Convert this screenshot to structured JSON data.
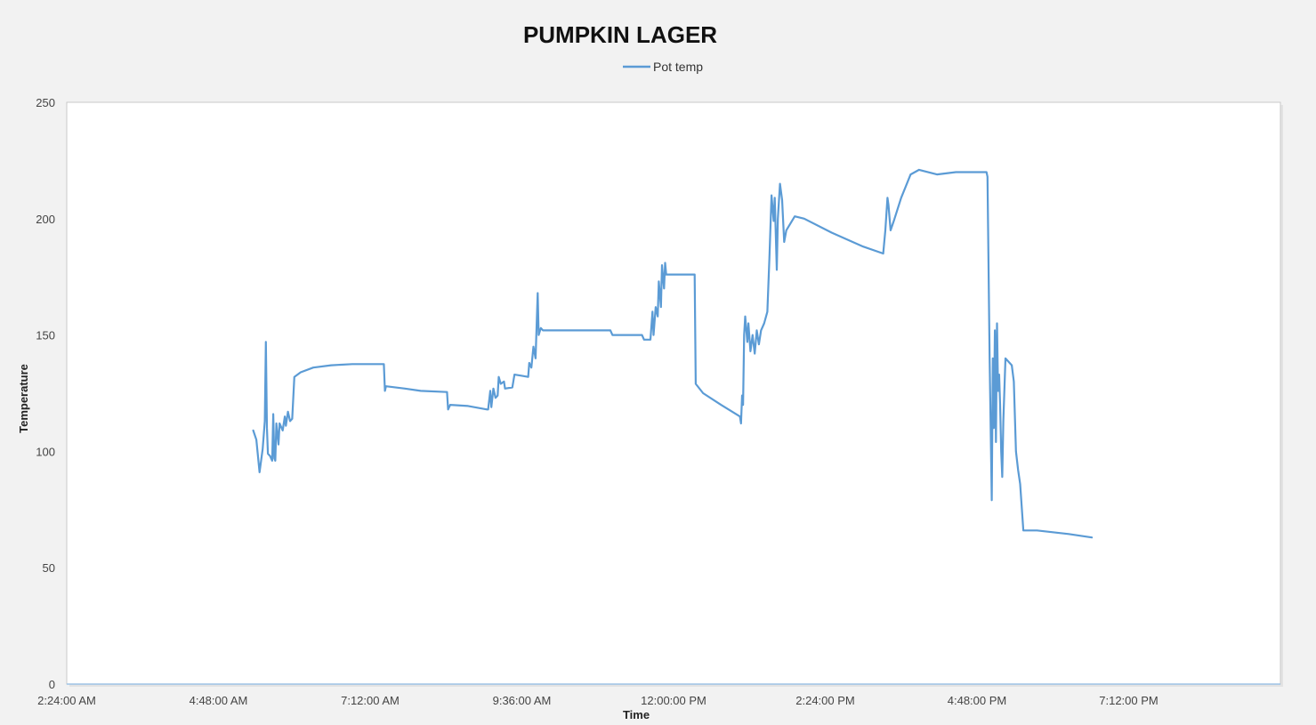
{
  "chart_data": {
    "type": "line",
    "title": "PUMPKIN LAGER",
    "xlabel": "Time",
    "ylabel": "Temperature",
    "xlim": [
      "2:24:00 AM",
      "9:36:00 PM"
    ],
    "ylim": [
      0,
      250
    ],
    "y_ticks": [
      "0",
      "50",
      "100",
      "150",
      "200",
      "250"
    ],
    "x_ticks": [
      "2:24:00 AM",
      "4:48:00 AM",
      "7:12:00 AM",
      "9:36:00 AM",
      "12:00:00 PM",
      "2:24:00 PM",
      "4:48:00 PM",
      "7:12:00 PM"
    ],
    "legend": {
      "position": "top",
      "entries": [
        "Pot temp"
      ]
    },
    "grid": false,
    "line_color": "#5b9bd5",
    "series": [
      {
        "name": "Pot temp",
        "points": [
          [
            "5:21 AM",
            109
          ],
          [
            "5:24 AM",
            105
          ],
          [
            "5:27 AM",
            91
          ],
          [
            "5:30 AM",
            101
          ],
          [
            "5:32 AM",
            113
          ],
          [
            "5:33 AM",
            147
          ],
          [
            "5:34 AM",
            110
          ],
          [
            "5:35 AM",
            99
          ],
          [
            "5:37 AM",
            98
          ],
          [
            "5:39 AM",
            96
          ],
          [
            "5:40 AM",
            116
          ],
          [
            "5:41 AM",
            97
          ],
          [
            "5:42 AM",
            96
          ],
          [
            "5:43 AM",
            112
          ],
          [
            "5:45 AM",
            103
          ],
          [
            "5:46 AM",
            112
          ],
          [
            "5:49 AM",
            109
          ],
          [
            "5:51 AM",
            115
          ],
          [
            "5:52 AM",
            111
          ],
          [
            "5:54 AM",
            117
          ],
          [
            "5:56 AM",
            113
          ],
          [
            "5:58 AM",
            114
          ],
          [
            "6:00 AM",
            132
          ],
          [
            "6:06 AM",
            134
          ],
          [
            "6:18 AM",
            136
          ],
          [
            "6:35 AM",
            137
          ],
          [
            "6:55 AM",
            137.5
          ],
          [
            "7:25 AM",
            137.5
          ],
          [
            "7:26 AM",
            126
          ],
          [
            "7:27 AM",
            128
          ],
          [
            "7:45 AM",
            127
          ],
          [
            "8:00 AM",
            126
          ],
          [
            "8:25 AM",
            125.5
          ],
          [
            "8:26 AM",
            118
          ],
          [
            "8:28 AM",
            120
          ],
          [
            "8:45 AM",
            119.5
          ],
          [
            "9:03 AM",
            118
          ],
          [
            "9:04 AM",
            118
          ],
          [
            "9:06 AM",
            126
          ],
          [
            "9:07 AM",
            119
          ],
          [
            "9:09 AM",
            127
          ],
          [
            "9:11 AM",
            123
          ],
          [
            "9:13 AM",
            124
          ],
          [
            "9:14 AM",
            132
          ],
          [
            "9:16 AM",
            129
          ],
          [
            "9:19 AM",
            130
          ],
          [
            "9:20 AM",
            127
          ],
          [
            "9:27 AM",
            127.5
          ],
          [
            "9:29 AM",
            133
          ],
          [
            "9:36 AM",
            132.5
          ],
          [
            "9:42 AM",
            132
          ],
          [
            "9:43 AM",
            138
          ],
          [
            "9:45 AM",
            136
          ],
          [
            "9:47 AM",
            145
          ],
          [
            "9:49 AM",
            140
          ],
          [
            "9:51 AM",
            168
          ],
          [
            "9:52 AM",
            150
          ],
          [
            "9:54 AM",
            153
          ],
          [
            "9:56 AM",
            152
          ],
          [
            "10:30 AM",
            152
          ],
          [
            "11:00 AM",
            152
          ],
          [
            "11:02 AM",
            150
          ],
          [
            "11:30 AM",
            150
          ],
          [
            "11:32 AM",
            148
          ],
          [
            "11:38 AM",
            148
          ],
          [
            "11:40 AM",
            160
          ],
          [
            "11:41 AM",
            150
          ],
          [
            "11:43 AM",
            162
          ],
          [
            "11:45 AM",
            158
          ],
          [
            "11:46 AM",
            173
          ],
          [
            "11:48 AM",
            162
          ],
          [
            "11:49 AM",
            180
          ],
          [
            "11:51 AM",
            170
          ],
          [
            "11:52 AM",
            181
          ],
          [
            "11:53 AM",
            176
          ],
          [
            "12:20 PM",
            176
          ],
          [
            "12:21 PM",
            129
          ],
          [
            "12:28 PM",
            125
          ],
          [
            "12:45 PM",
            120
          ],
          [
            "1:03 PM",
            115
          ],
          [
            "1:04 PM",
            112
          ],
          [
            "1:05 PM",
            124
          ],
          [
            "1:06 PM",
            120
          ],
          [
            "1:07 PM",
            150
          ],
          [
            "1:08 PM",
            158
          ],
          [
            "1:10 PM",
            147
          ],
          [
            "1:11 PM",
            155
          ],
          [
            "1:13 PM",
            143
          ],
          [
            "1:15 PM",
            150
          ],
          [
            "1:17 PM",
            142
          ],
          [
            "1:19 PM",
            152
          ],
          [
            "1:21 PM",
            146
          ],
          [
            "1:23 PM",
            152
          ],
          [
            "1:26 PM",
            155
          ],
          [
            "1:29 PM",
            160
          ],
          [
            "1:31 PM",
            183
          ],
          [
            "1:33 PM",
            210
          ],
          [
            "1:35 PM",
            199
          ],
          [
            "1:36 PM",
            209
          ],
          [
            "1:38 PM",
            178
          ],
          [
            "1:39 PM",
            200
          ],
          [
            "1:41 PM",
            215
          ],
          [
            "1:43 PM",
            208
          ],
          [
            "1:45 PM",
            190
          ],
          [
            "1:47 PM",
            195
          ],
          [
            "1:55 PM",
            201
          ],
          [
            "2:04 PM",
            200
          ],
          [
            "2:30 PM",
            194
          ],
          [
            "3:00 PM",
            188
          ],
          [
            "3:19 PM",
            185
          ],
          [
            "3:21 PM",
            195
          ],
          [
            "3:23 PM",
            209
          ],
          [
            "3:24 PM",
            206
          ],
          [
            "3:26 PM",
            195
          ],
          [
            "3:29 PM",
            199
          ],
          [
            "3:36 PM",
            209
          ],
          [
            "3:45 PM",
            219
          ],
          [
            "3:53 PM",
            221
          ],
          [
            "4:10 PM",
            219
          ],
          [
            "4:28 PM",
            220
          ],
          [
            "4:57 PM",
            220
          ],
          [
            "4:58 PM",
            218
          ],
          [
            "5:00 PM",
            140
          ],
          [
            "5:02 PM",
            79
          ],
          [
            "5:03 PM",
            140
          ],
          [
            "5:04 PM",
            110
          ],
          [
            "5:05 PM",
            152
          ],
          [
            "5:06 PM",
            104
          ],
          [
            "5:07 PM",
            155
          ],
          [
            "5:08 PM",
            126
          ],
          [
            "5:09 PM",
            133
          ],
          [
            "5:10 PM",
            120
          ],
          [
            "5:11 PM",
            100
          ],
          [
            "5:12 PM",
            89
          ],
          [
            "5:13 PM",
            113
          ],
          [
            "5:15 PM",
            140
          ],
          [
            "5:17 PM",
            139
          ],
          [
            "5:21 PM",
            137
          ],
          [
            "5:23 PM",
            130
          ],
          [
            "5:25 PM",
            100
          ],
          [
            "5:27 PM",
            92
          ],
          [
            "5:29 PM",
            86
          ],
          [
            "5:32 PM",
            66
          ],
          [
            "5:45 PM",
            66
          ],
          [
            "6:15 PM",
            64.5
          ],
          [
            "6:37 PM",
            63
          ]
        ]
      }
    ]
  }
}
